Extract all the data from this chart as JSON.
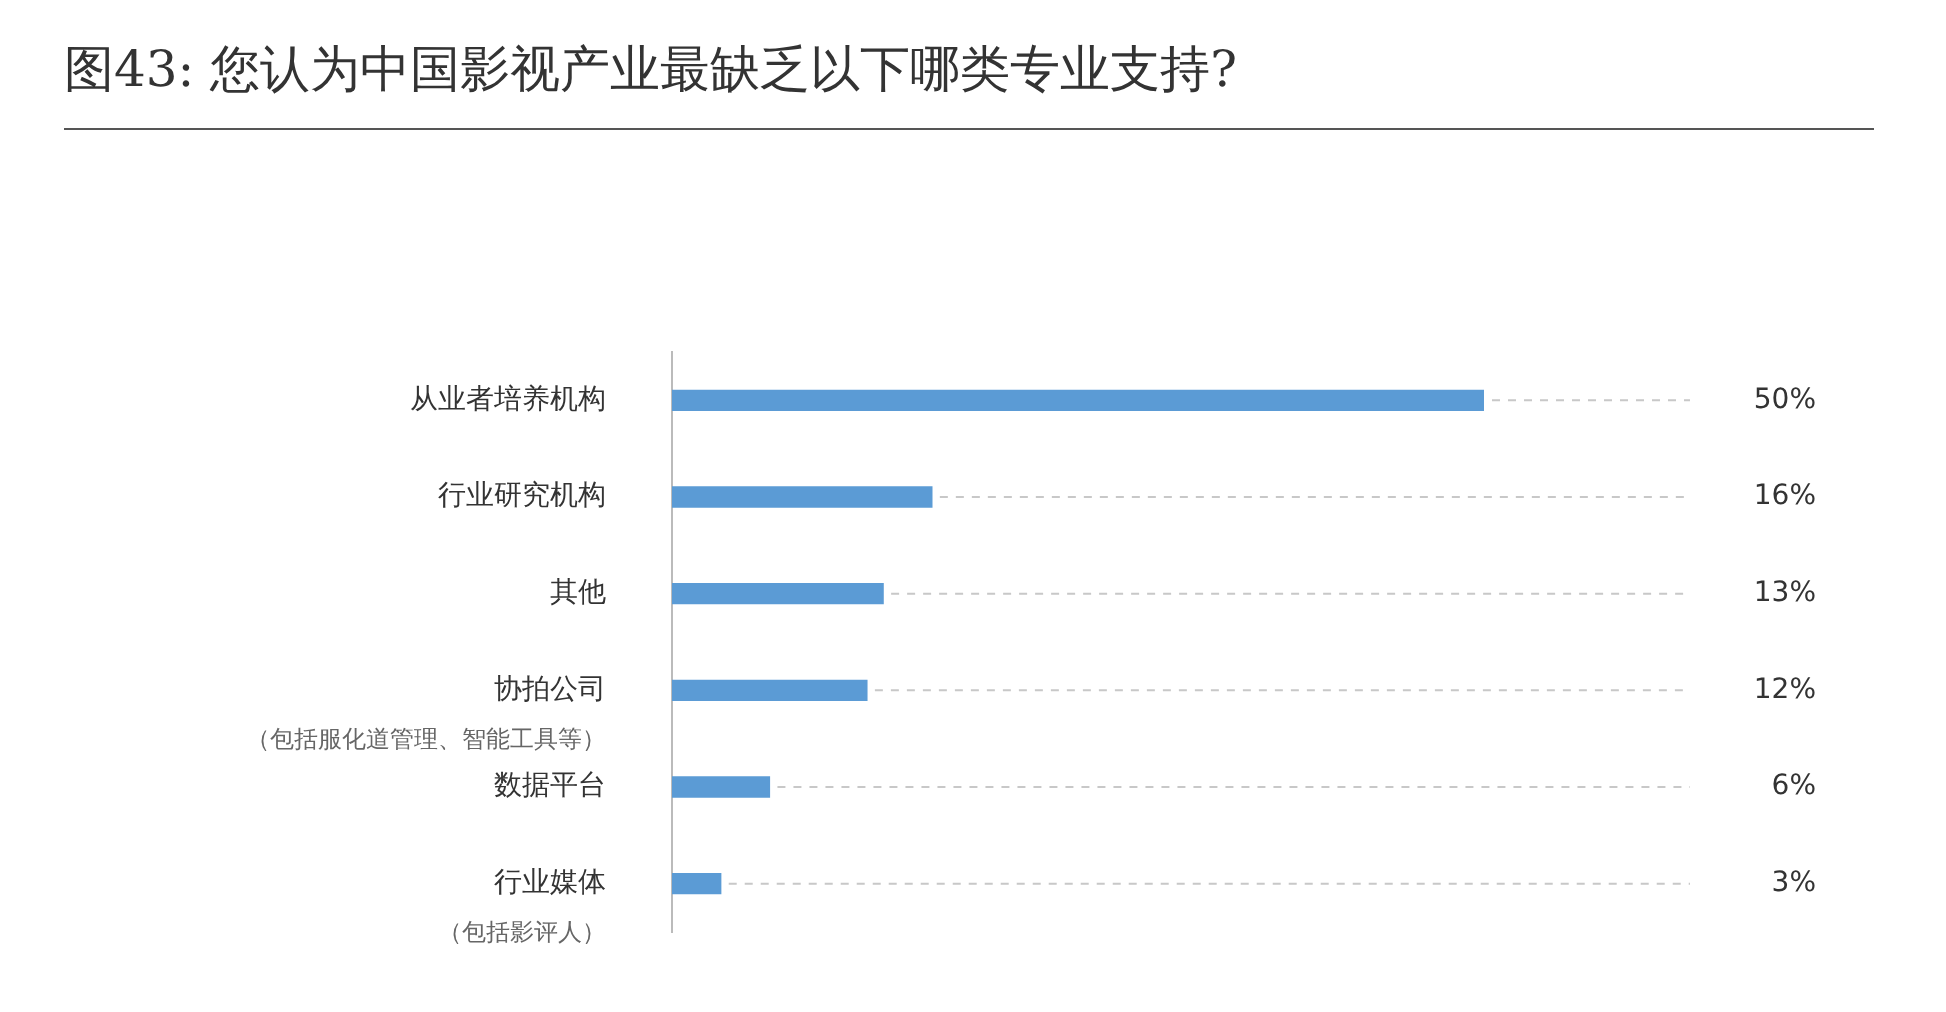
{
  "chart_data": {
    "type": "bar",
    "orientation": "horizontal",
    "title": "图43: 您认为中国影视产业最缺乏以下哪类专业支持?",
    "categories": [
      "从业者培养机构",
      "行业研究机构",
      "其他",
      "协拍公司（包括服化道管理、智能工具等）",
      "数据平台",
      "行业媒体（包括影评人）"
    ],
    "values": [
      50,
      16,
      13,
      12,
      6,
      3
    ],
    "value_labels": [
      "50%",
      "16%",
      "13%",
      "12%",
      "6%",
      "3%"
    ],
    "color": "#5b9bd5",
    "grid": "y",
    "legend": false
  }
}
